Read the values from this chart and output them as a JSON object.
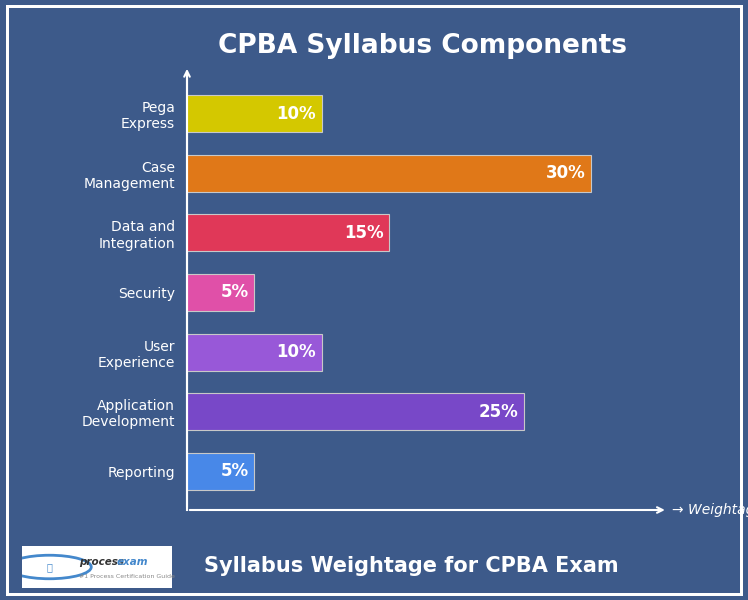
{
  "title": "CPBA Syllabus Components",
  "subtitle": "Syllabus Weightage for CPBA Exam",
  "categories": [
    "Pega\nExpress",
    "Case\nManagement",
    "Data and\nIntegration",
    "Security",
    "User\nExperience",
    "Application\nDevelopment",
    "Reporting"
  ],
  "values": [
    10,
    30,
    15,
    5,
    10,
    25,
    5
  ],
  "labels": [
    "10%",
    "30%",
    "15%",
    "5%",
    "10%",
    "25%",
    "5%"
  ],
  "bar_colors": [
    "#d4c800",
    "#e07818",
    "#e03858",
    "#e050a8",
    "#9858d8",
    "#7848c8",
    "#4888e8"
  ],
  "bar_edgecolor": "#c8c8c8",
  "background_color": "#3d5a8a",
  "text_color": "#ffffff",
  "weightage_label": "Weightage",
  "xlim": [
    0,
    35
  ],
  "bar_height": 0.62,
  "title_fontsize": 19,
  "label_fontsize": 12,
  "tick_fontsize": 11,
  "subtitle_fontsize": 15,
  "axis_color": "#ffffff"
}
